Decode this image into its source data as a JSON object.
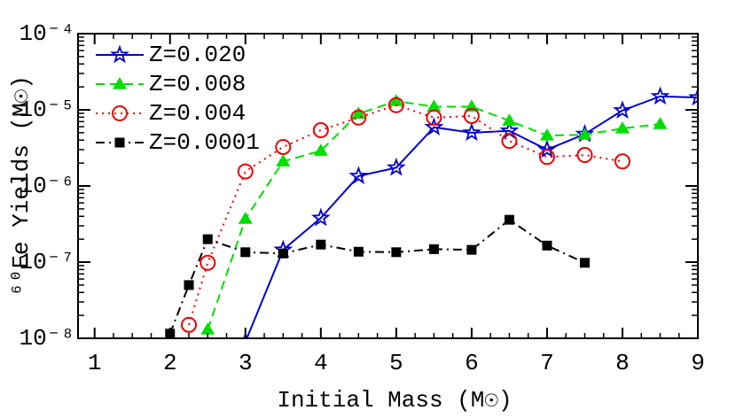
{
  "chart_data": {
    "type": "line",
    "xlabel": "Initial Mass (M☉)",
    "ylabel": "⁶⁰Fe Yields (M☉)",
    "log_y": true,
    "xlim": [
      0.78,
      9
    ],
    "ylim": [
      1e-08,
      0.0001
    ],
    "xticks": [
      1,
      2,
      3,
      4,
      5,
      6,
      7,
      8,
      9
    ],
    "yticks": [
      {
        "value": 1e-08,
        "label": "10⁻⁸"
      },
      {
        "value": 1e-07,
        "label": "10⁻⁷"
      },
      {
        "value": 1e-06,
        "label": "10⁻⁶"
      },
      {
        "value": 1e-05,
        "label": "10⁻⁵"
      },
      {
        "value": 0.0001,
        "label": "10⁻⁴"
      }
    ],
    "legend": "upper left",
    "series": [
      {
        "name": "Z=0.020",
        "color": "#0000cc",
        "dash": "solid",
        "marker": "star",
        "x": [
          3,
          3.5,
          4,
          4.5,
          5,
          5.5,
          6,
          6.5,
          7,
          7.5,
          8,
          8.5,
          9
        ],
        "values": [
          9e-09,
          1.45e-07,
          3.8e-07,
          1.35e-06,
          1.74e-06,
          5.9e-06,
          5e-06,
          5.3e-06,
          3e-06,
          4.8e-06,
          9.8e-06,
          1.5e-05,
          1.45e-05
        ]
      },
      {
        "name": "Z=0.008",
        "color": "#00dd00",
        "dash": "dashed",
        "marker": "triangle",
        "x": [
          2.5,
          3,
          3.5,
          4,
          4.5,
          5,
          5.5,
          6,
          6.5,
          7,
          7.5,
          8,
          8.5
        ],
        "values": [
          1.3e-08,
          3.7e-07,
          2.1e-06,
          2.9e-06,
          8.9e-06,
          1.3e-05,
          1.1e-05,
          1.1e-05,
          7.2e-06,
          4.6e-06,
          4.7e-06,
          5.7e-06,
          6.5e-06
        ]
      },
      {
        "name": "Z=0.004",
        "color": "#ee0000",
        "dash": "dotted",
        "marker": "circle",
        "x": [
          2.25,
          2.5,
          3,
          3.5,
          4,
          4.5,
          5,
          5.5,
          6,
          6.5,
          7,
          7.5,
          8
        ],
        "values": [
          1.5e-08,
          9.8e-08,
          1.55e-06,
          3.25e-06,
          5.4e-06,
          7.9e-06,
          1.15e-05,
          7.9e-06,
          8.3e-06,
          3.9e-06,
          2.4e-06,
          2.55e-06,
          2.1e-06
        ]
      },
      {
        "name": "Z=0.0001",
        "color": "#000000",
        "dash": "dashdot",
        "marker": "square",
        "x": [
          2,
          2.25,
          2.5,
          3,
          3.5,
          4,
          4.5,
          5,
          5.5,
          6,
          6.5,
          7,
          7.5
        ],
        "values": [
          1.15e-08,
          5e-08,
          2e-07,
          1.35e-07,
          1.3e-07,
          1.7e-07,
          1.37e-07,
          1.35e-07,
          1.48e-07,
          1.45e-07,
          3.6e-07,
          1.65e-07,
          9.8e-08
        ]
      }
    ]
  }
}
